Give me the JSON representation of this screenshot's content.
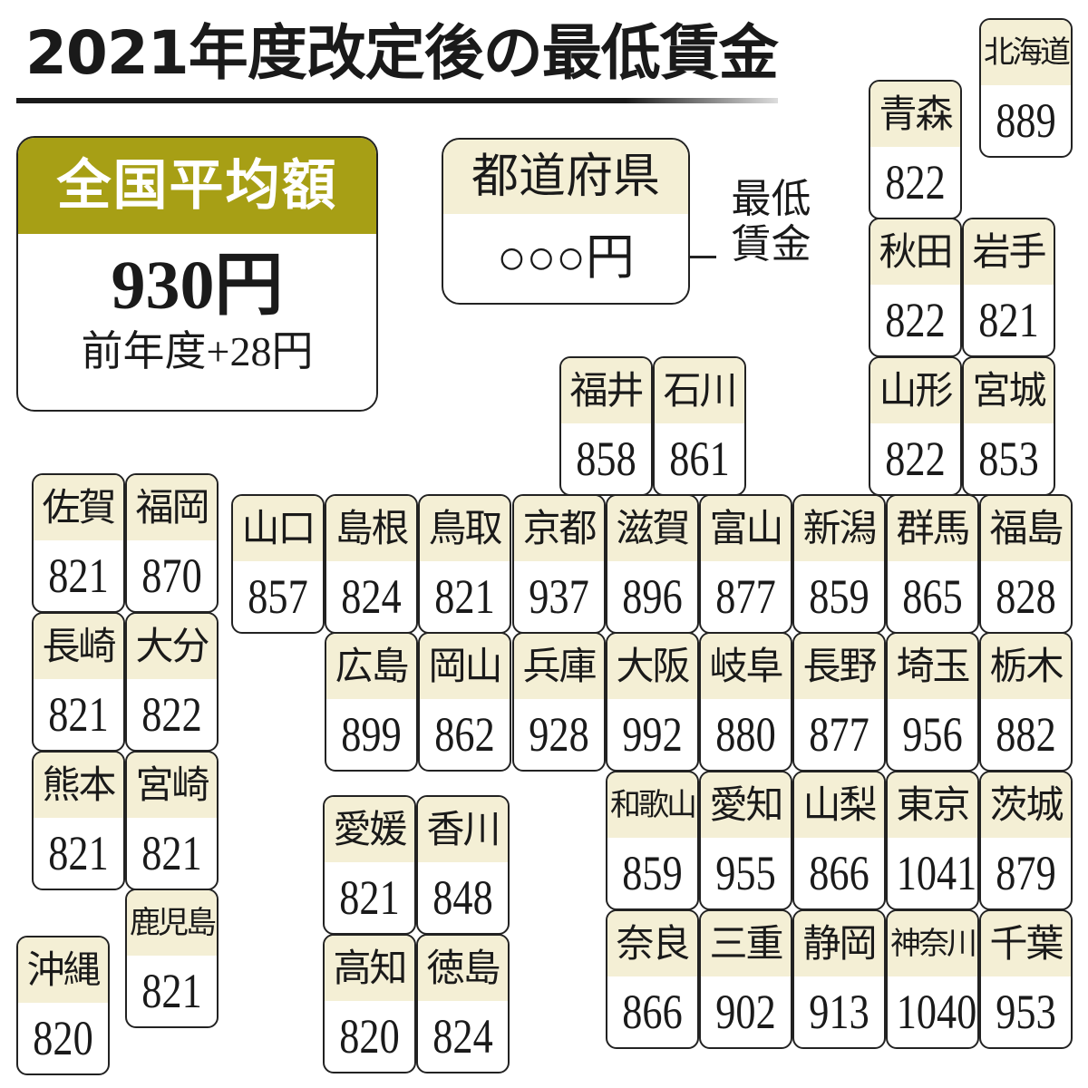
{
  "title": "2021年度改定後の最低賃金",
  "national_average": {
    "label": "全国平均額",
    "value": "930円",
    "change": "前年度+28円"
  },
  "legend": {
    "prefecture": "都道府県",
    "amount": "○○○円",
    "label": "最低賃金"
  },
  "colors": {
    "header": "#a79f15",
    "name_bg": "#f4efd5",
    "border": "#222222"
  },
  "prefectures": [
    {
      "name": "北海道",
      "wage": 889
    },
    {
      "name": "青森",
      "wage": 822
    },
    {
      "name": "秋田",
      "wage": 822
    },
    {
      "name": "岩手",
      "wage": 821
    },
    {
      "name": "山形",
      "wage": 822
    },
    {
      "name": "宮城",
      "wage": 853
    },
    {
      "name": "福井",
      "wage": 858
    },
    {
      "name": "石川",
      "wage": 861
    },
    {
      "name": "山口",
      "wage": 857
    },
    {
      "name": "島根",
      "wage": 824
    },
    {
      "name": "鳥取",
      "wage": 821
    },
    {
      "name": "京都",
      "wage": 937
    },
    {
      "name": "滋賀",
      "wage": 896
    },
    {
      "name": "富山",
      "wage": 877
    },
    {
      "name": "新潟",
      "wage": 859
    },
    {
      "name": "群馬",
      "wage": 865
    },
    {
      "name": "福島",
      "wage": 828
    },
    {
      "name": "広島",
      "wage": 899
    },
    {
      "name": "岡山",
      "wage": 862
    },
    {
      "name": "兵庫",
      "wage": 928
    },
    {
      "name": "大阪",
      "wage": 992
    },
    {
      "name": "岐阜",
      "wage": 880
    },
    {
      "name": "長野",
      "wage": 877
    },
    {
      "name": "埼玉",
      "wage": 956
    },
    {
      "name": "栃木",
      "wage": 882
    },
    {
      "name": "和歌山",
      "wage": 859
    },
    {
      "name": "愛知",
      "wage": 955
    },
    {
      "name": "山梨",
      "wage": 866
    },
    {
      "name": "東京",
      "wage": 1041
    },
    {
      "name": "茨城",
      "wage": 879
    },
    {
      "name": "奈良",
      "wage": 866
    },
    {
      "name": "三重",
      "wage": 902
    },
    {
      "name": "静岡",
      "wage": 913
    },
    {
      "name": "神奈川",
      "wage": 1040
    },
    {
      "name": "千葉",
      "wage": 953
    },
    {
      "name": "佐賀",
      "wage": 821
    },
    {
      "name": "福岡",
      "wage": 870
    },
    {
      "name": "長崎",
      "wage": 821
    },
    {
      "name": "大分",
      "wage": 822
    },
    {
      "name": "熊本",
      "wage": 821
    },
    {
      "name": "宮崎",
      "wage": 821
    },
    {
      "name": "鹿児島",
      "wage": 821
    },
    {
      "name": "沖縄",
      "wage": 820
    },
    {
      "name": "愛媛",
      "wage": 821
    },
    {
      "name": "香川",
      "wage": 848
    },
    {
      "name": "高知",
      "wage": 820
    },
    {
      "name": "徳島",
      "wage": 824
    }
  ]
}
